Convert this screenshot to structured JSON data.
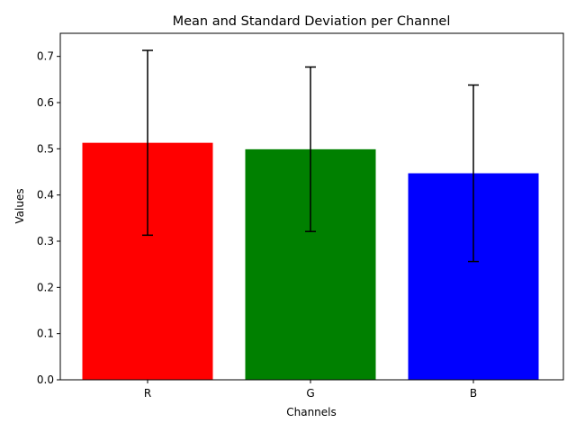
{
  "chart_data": {
    "type": "bar",
    "title": "Mean and Standard Deviation per Channel",
    "xlabel": "Channels",
    "ylabel": "Values",
    "categories": [
      "R",
      "G",
      "B"
    ],
    "values": [
      0.513,
      0.499,
      0.447
    ],
    "errors": [
      0.2,
      0.178,
      0.191
    ],
    "colors": [
      "#ff0000",
      "#008000",
      "#0000ff"
    ],
    "ylim": [
      0,
      0.75
    ],
    "yticks": [
      0.0,
      0.1,
      0.2,
      0.3,
      0.4,
      0.5,
      0.6,
      0.7
    ],
    "ytick_labels": [
      "0.0",
      "0.1",
      "0.2",
      "0.3",
      "0.4",
      "0.5",
      "0.6",
      "0.7"
    ],
    "grid": false,
    "legend": "none"
  }
}
